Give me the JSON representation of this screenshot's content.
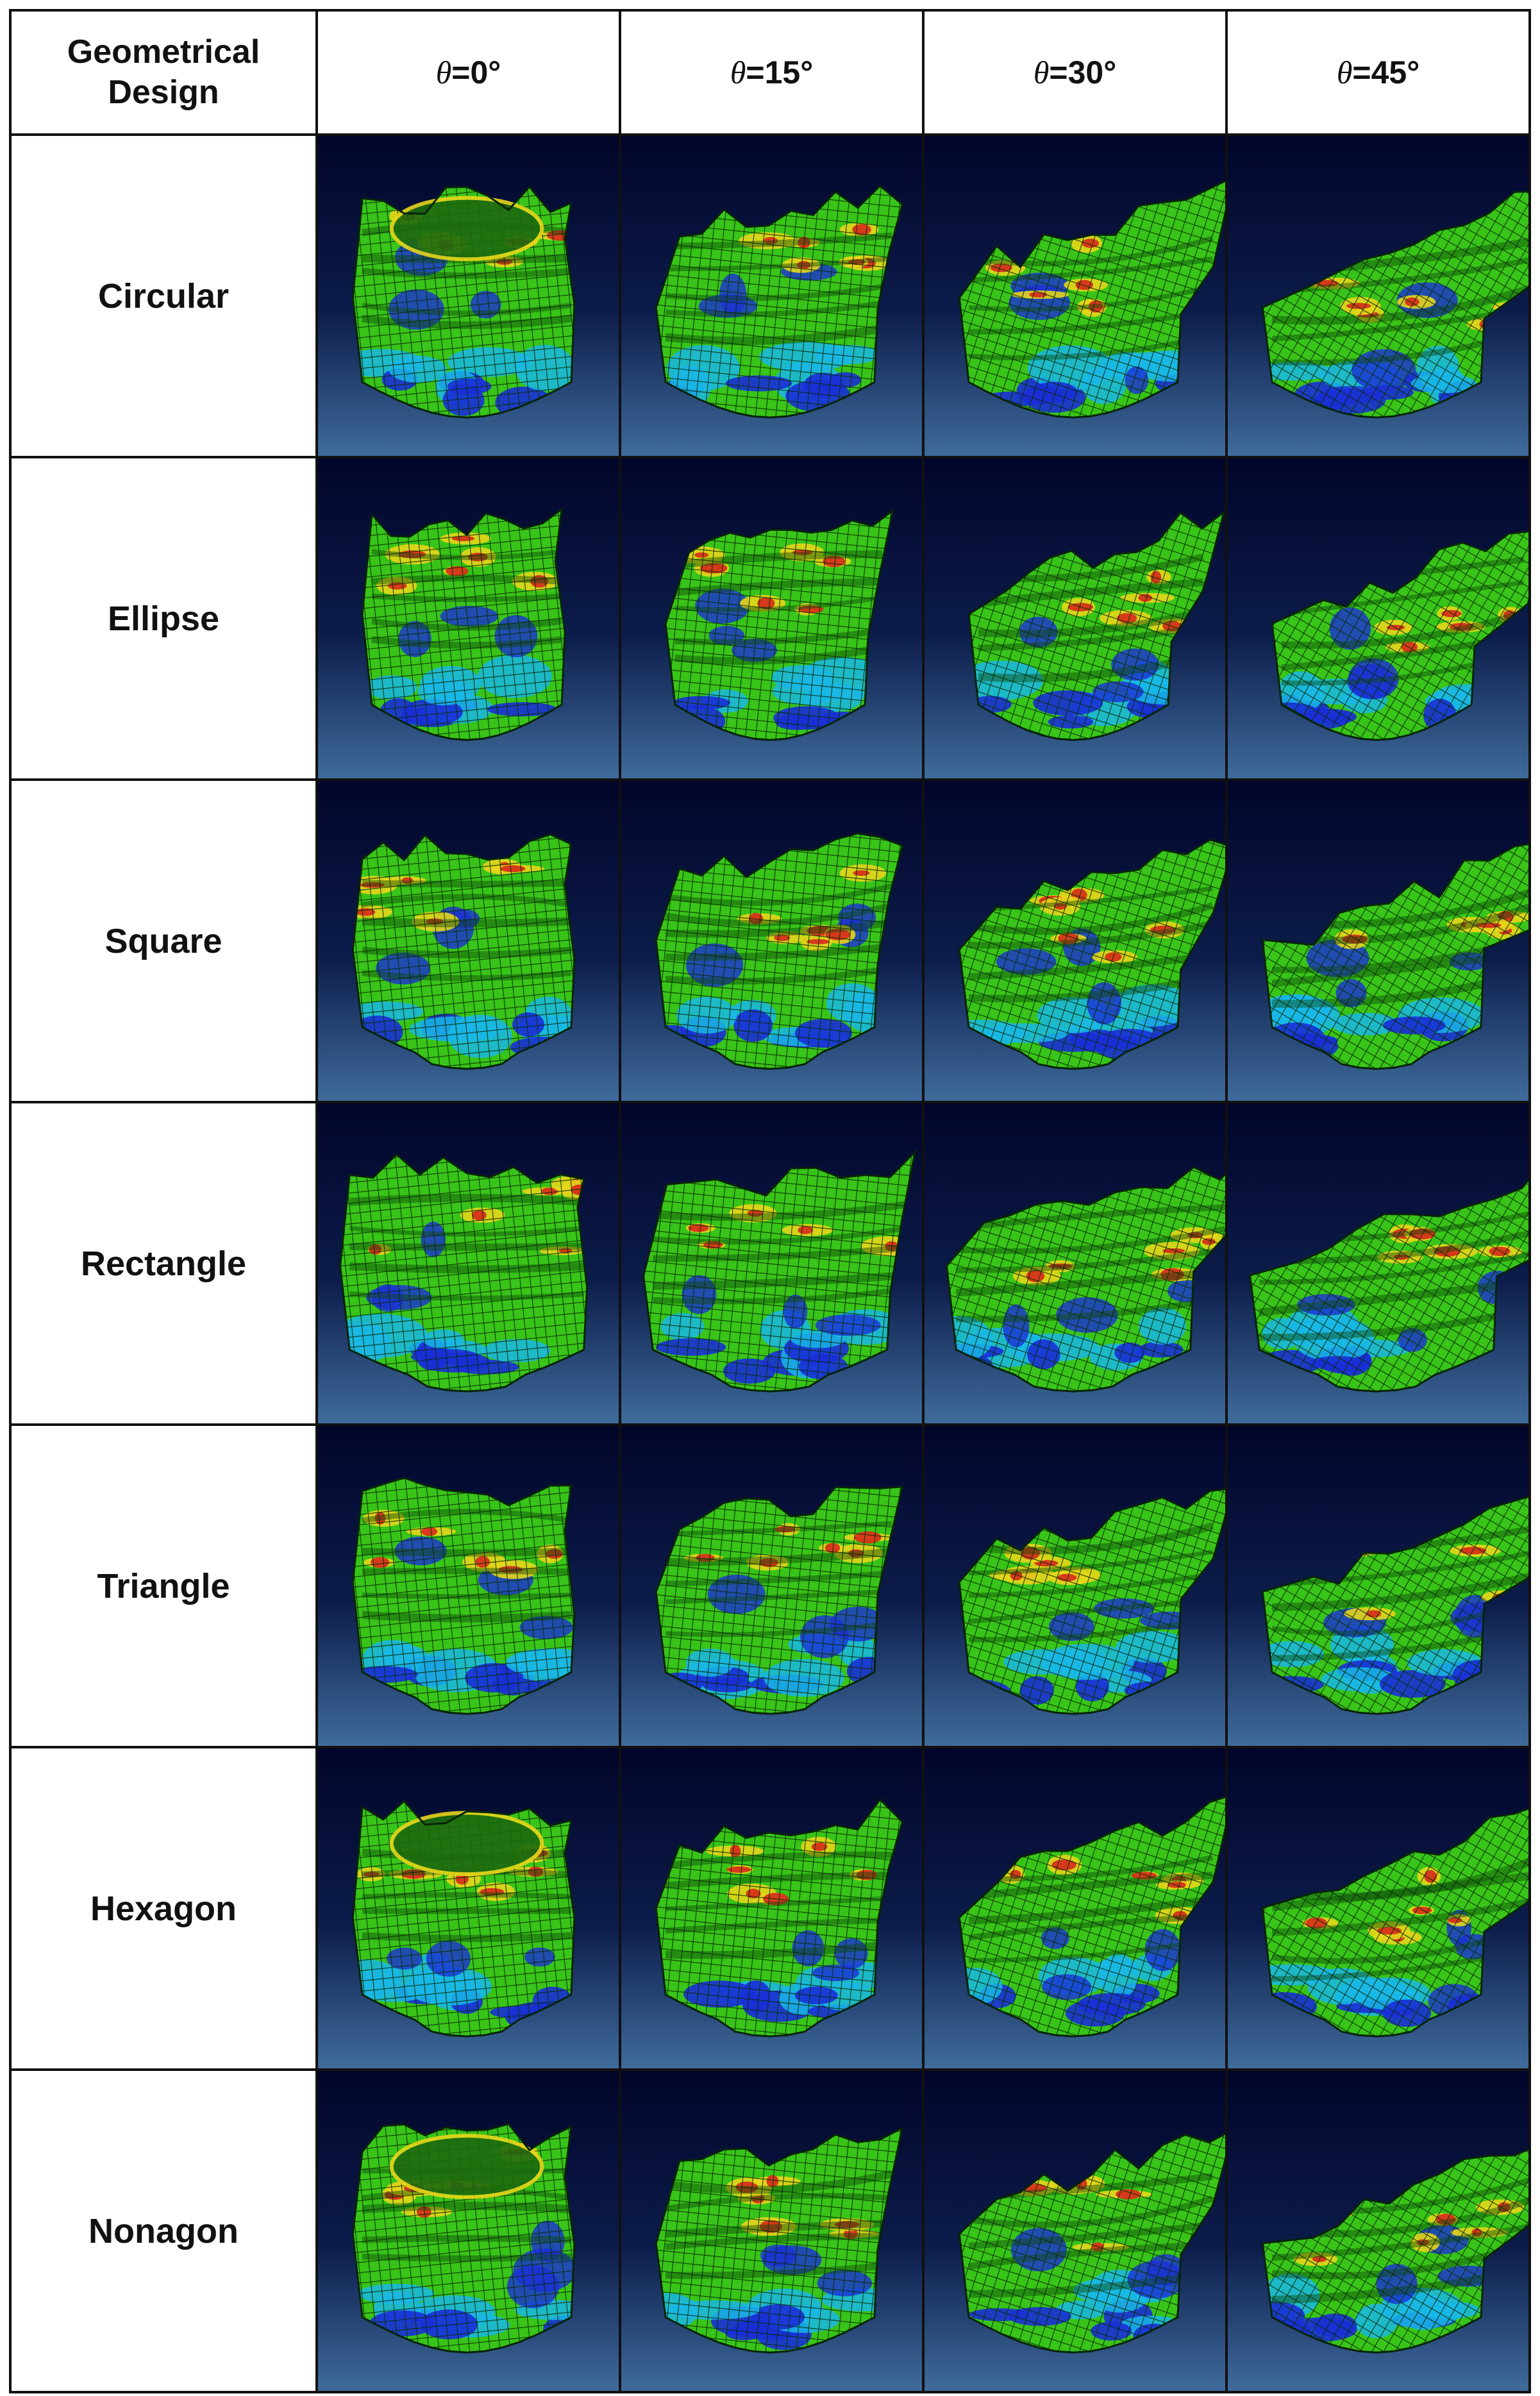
{
  "table": {
    "corner": [
      "Geometrical",
      "Design"
    ],
    "columns": [
      {
        "symbol": "θ",
        "angle": "=0°"
      },
      {
        "symbol": "θ",
        "angle": "=15°"
      },
      {
        "symbol": "θ",
        "angle": "=30°"
      },
      {
        "symbol": "θ",
        "angle": "=45°"
      }
    ],
    "rows": [
      {
        "label": "Circular",
        "shape": "circular"
      },
      {
        "label": "Ellipse",
        "shape": "ellipse"
      },
      {
        "label": "Square",
        "shape": "square"
      },
      {
        "label": "Rectangle",
        "shape": "rectangle"
      },
      {
        "label": "Triangle",
        "shape": "triangle"
      },
      {
        "label": "Hexagon",
        "shape": "hexagon"
      },
      {
        "label": "Nonagon",
        "shape": "nonagon"
      }
    ]
  },
  "colors": {
    "background_top": "#02052a",
    "background_bottom": "#3f6b9b",
    "mesh_green": "#38c418",
    "mesh_line": "#0b2a05",
    "stress_blue": "#1a2fd6",
    "stress_cyan": "#19b7e6",
    "stress_yellow": "#e6d61a",
    "stress_red": "#d6321a"
  }
}
